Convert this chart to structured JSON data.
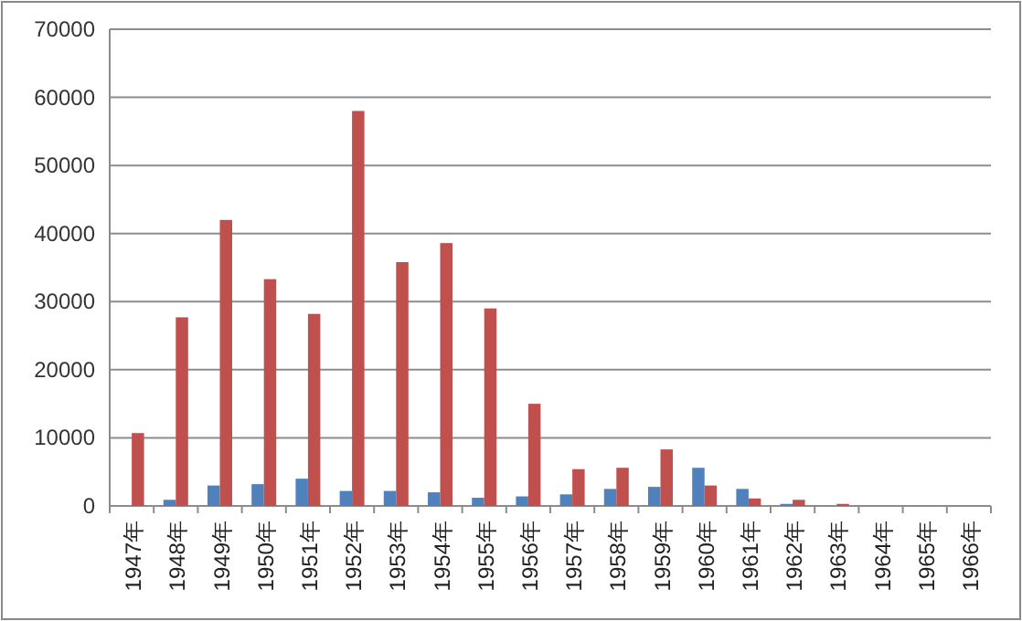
{
  "chart_data": {
    "type": "bar",
    "categories": [
      "1947年",
      "1948年",
      "1949年",
      "1950年",
      "1951年",
      "1952年",
      "1953年",
      "1954年",
      "1955年",
      "1956年",
      "1957年",
      "1958年",
      "1959年",
      "1960年",
      "1961年",
      "1962年",
      "1963年",
      "1964年",
      "1965年",
      "1966年"
    ],
    "series": [
      {
        "color": "#4f81bd",
        "values": [
          0,
          900,
          3000,
          3200,
          4000,
          2200,
          2200,
          2000,
          1200,
          1400,
          1700,
          2500,
          2800,
          5600,
          2500,
          300,
          0,
          0,
          0,
          0
        ]
      },
      {
        "color": "#c0504d",
        "values": [
          10700,
          27700,
          42000,
          33300,
          28200,
          58000,
          35800,
          38600,
          29000,
          15000,
          5400,
          5600,
          8300,
          3000,
          1100,
          900,
          300,
          0,
          0,
          0
        ]
      }
    ],
    "ylim": [
      0,
      70000
    ],
    "yticks": [
      0,
      10000,
      20000,
      30000,
      40000,
      50000,
      60000,
      70000
    ],
    "grid": "y"
  }
}
